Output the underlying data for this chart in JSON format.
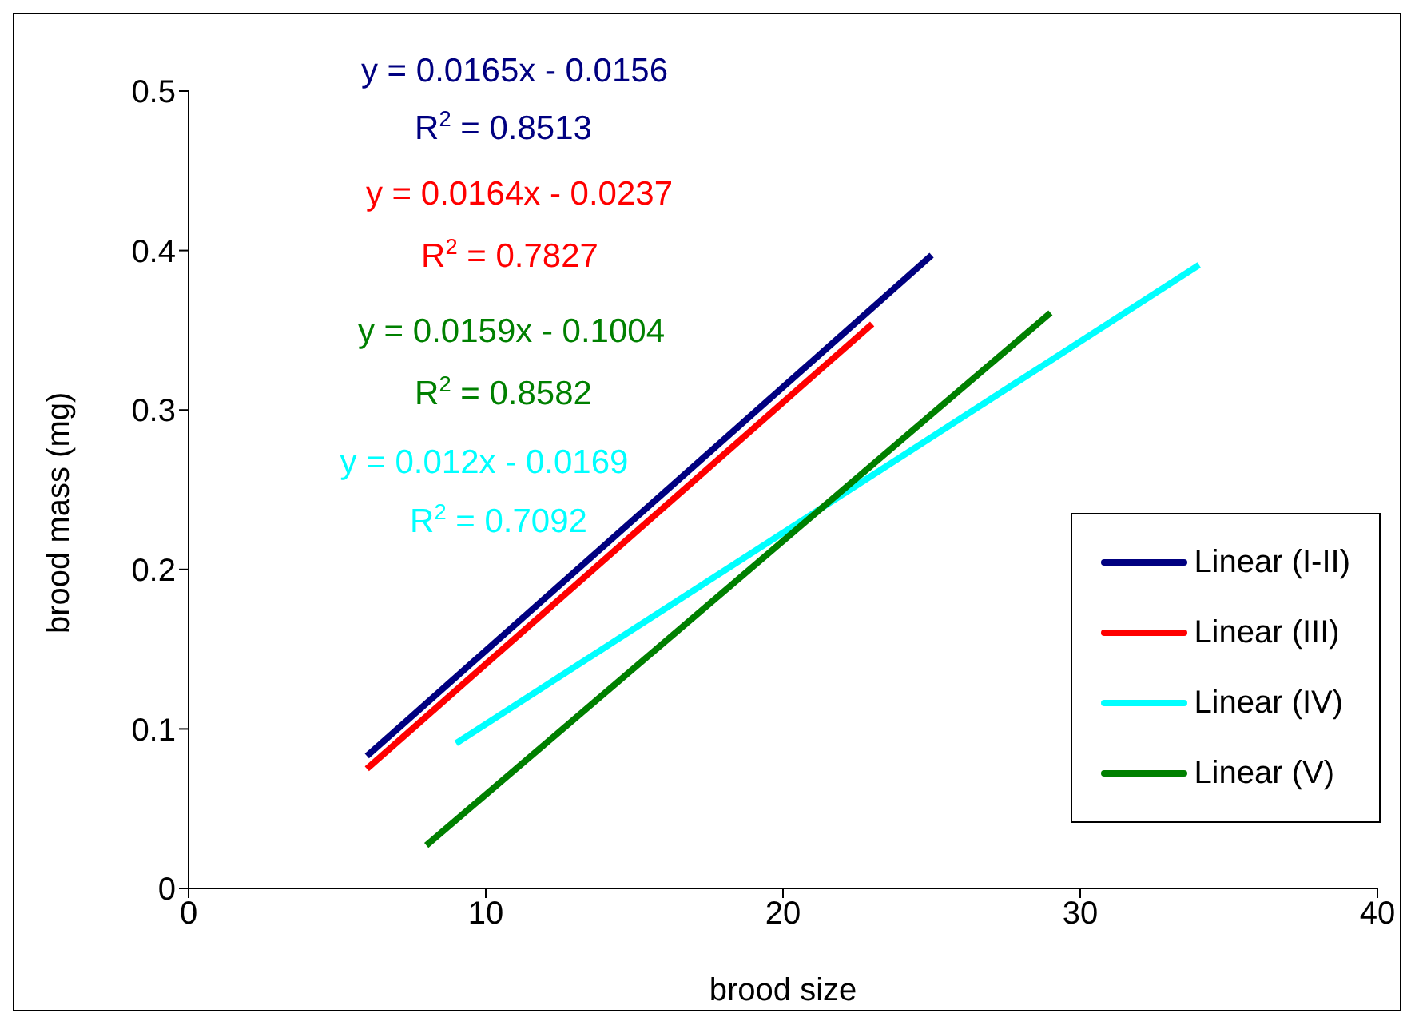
{
  "chart_data": {
    "type": "line",
    "xlabel": "brood size",
    "ylabel": "brood mass (mg)",
    "xlim": [
      0,
      40
    ],
    "xticks": [
      0,
      10,
      20,
      30,
      40
    ],
    "ylim": [
      0,
      0.5
    ],
    "yticks": [
      0,
      0.1,
      0.2,
      0.3,
      0.4,
      0.5
    ],
    "grid": false,
    "legend": "right",
    "marker": "none",
    "line_style": "solid",
    "series": [
      {
        "name": "Linear (I-II)",
        "color": "#000080",
        "x": [
          6,
          25
        ],
        "values": [
          0.083,
          0.397
        ]
      },
      {
        "name": "Linear (III)",
        "color": "#ff0000",
        "x": [
          6,
          23
        ],
        "values": [
          0.075,
          0.354
        ]
      },
      {
        "name": "Linear (IV)",
        "color": "#00ffff",
        "x": [
          9,
          34
        ],
        "values": [
          0.091,
          0.391
        ]
      },
      {
        "name": "Linear (V)",
        "color": "#008000",
        "x": [
          8,
          29
        ],
        "values": [
          0.027,
          0.361
        ]
      }
    ],
    "annotations": [
      "y = 0.0165x - 0.0156",
      "R$^{2}$ = 0.8513",
      "y = 0.0164x - 0.0237",
      "R$^{2}$ = 0.7827",
      "y = 0.0159x - 0.1004",
      "R$^{2}$ = 0.8582",
      "y = 0.012x - 0.0169",
      "R$^{2}$ = 0.7092"
    ]
  }
}
